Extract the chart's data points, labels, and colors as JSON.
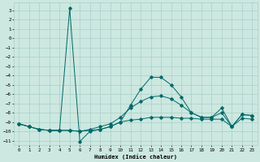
{
  "xlabel": "Humidex (Indice chaleur)",
  "bg_color": "#cce8e0",
  "grid_color": "#aacfc8",
  "line_color": "#006868",
  "xlim": [
    -0.5,
    23.5
  ],
  "ylim": [
    -11.5,
    3.8
  ],
  "yticks": [
    3,
    2,
    1,
    0,
    -1,
    -2,
    -3,
    -4,
    -5,
    -6,
    -7,
    -8,
    -9,
    -10,
    -11
  ],
  "xticks": [
    0,
    1,
    2,
    3,
    4,
    5,
    6,
    7,
    8,
    9,
    10,
    11,
    12,
    13,
    14,
    15,
    16,
    17,
    18,
    19,
    20,
    21,
    22,
    23
  ],
  "series1_x": [
    0,
    1,
    2,
    3,
    4,
    5,
    6,
    7,
    8,
    9,
    10,
    11,
    12,
    13,
    14,
    15,
    16,
    17,
    18,
    19,
    20,
    21,
    22,
    23
  ],
  "series1_y": [
    -9.2,
    -9.5,
    -9.8,
    -9.9,
    -9.9,
    -9.9,
    -10.0,
    -9.9,
    -9.8,
    -9.5,
    -9.0,
    -8.8,
    -8.7,
    -8.5,
    -8.5,
    -8.5,
    -8.6,
    -8.6,
    -8.7,
    -8.7,
    -8.7,
    -9.5,
    -8.6,
    -8.7
  ],
  "series2_x": [
    0,
    1,
    2,
    3,
    4,
    5,
    6,
    7,
    8,
    9,
    10,
    11,
    12,
    13,
    14,
    15,
    16,
    17,
    18,
    19,
    20,
    21,
    22,
    23
  ],
  "series2_y": [
    -9.2,
    -9.5,
    -9.8,
    -9.9,
    -9.9,
    -9.9,
    -10.0,
    -9.8,
    -9.5,
    -9.2,
    -8.5,
    -7.5,
    -6.8,
    -6.3,
    -6.2,
    -6.5,
    -7.2,
    -8.0,
    -8.5,
    -8.5,
    -8.0,
    -9.5,
    -8.2,
    -8.3
  ],
  "series3_x": [
    0,
    1,
    2,
    3,
    4,
    5,
    6,
    7,
    8,
    9,
    10,
    11,
    12,
    13,
    14,
    15,
    16,
    17,
    18,
    19,
    20,
    21,
    22,
    23
  ],
  "series3_y": [
    -9.2,
    -9.5,
    -9.8,
    -9.9,
    -9.9,
    3.2,
    -11.1,
    -10.0,
    -9.8,
    -9.5,
    -9.0,
    -7.2,
    -5.5,
    -4.2,
    -4.2,
    -5.0,
    -6.3,
    -8.0,
    -8.5,
    -8.5,
    -7.5,
    -9.5,
    -8.2,
    -8.3
  ]
}
